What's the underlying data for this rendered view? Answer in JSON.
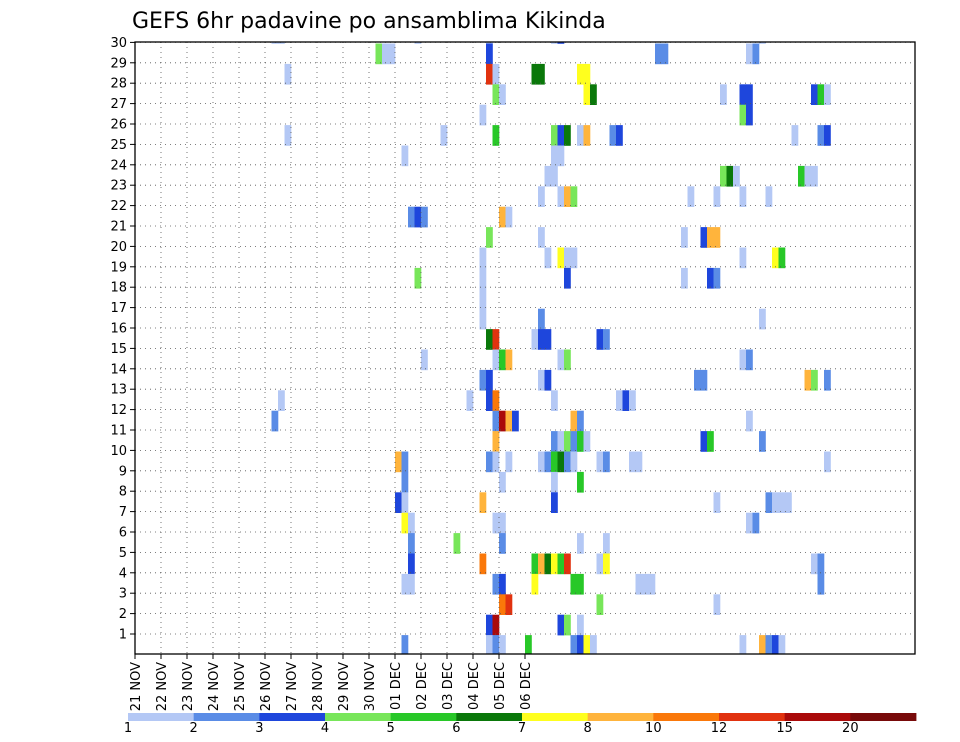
{
  "chart_data": {
    "type": "heatmap",
    "title": "GEFS 6hr padavine po ansamblima Kikinda",
    "xlabel": "",
    "ylabel": "",
    "x_ticks": [
      "21 NOV",
      "22 NOV",
      "23 NOV",
      "24 NOV",
      "25 NOV",
      "26 NOV",
      "27 NOV",
      "28 NOV",
      "29 NOV",
      "30 NOV",
      "01 DEC",
      "02 DEC",
      "03 DEC",
      "04 DEC",
      "05 DEC",
      "06 DEC"
    ],
    "y_ticks": [
      "1",
      "2",
      "3",
      "4",
      "5",
      "6",
      "7",
      "8",
      "9",
      "10",
      "11",
      "12",
      "13",
      "14",
      "15",
      "16",
      "17",
      "18",
      "19",
      "20",
      "21",
      "22",
      "23",
      "24",
      "25",
      "26",
      "27",
      "28",
      "29",
      "30"
    ],
    "x_unit": "6h steps from 21 NOV 00 UTC (4 steps per day)",
    "grid": true,
    "colorbar": {
      "labels": [
        "1",
        "2",
        "3",
        "4",
        "5",
        "6",
        "7",
        "8",
        "10",
        "12",
        "15",
        "20"
      ],
      "colors": [
        "#b4c8f5",
        "#5a8ce6",
        "#1e46dc",
        "#78e65a",
        "#28c828",
        "#0a780a",
        "#ffff1e",
        "#ffb43c",
        "#fa780a",
        "#e1320f",
        "#aa0a0a",
        "#780a0a"
      ]
    },
    "cells": [
      [
        30,
        21,
        0
      ],
      [
        30,
        22,
        0
      ],
      [
        30,
        43,
        0
      ],
      [
        30,
        54,
        0
      ],
      [
        30,
        64,
        0
      ],
      [
        30,
        65,
        2
      ],
      [
        30,
        96,
        0
      ],
      [
        29,
        37,
        3
      ],
      [
        29,
        38,
        0
      ],
      [
        29,
        39,
        0
      ],
      [
        29,
        54,
        2
      ],
      [
        29,
        80,
        1
      ],
      [
        29,
        81,
        1
      ],
      [
        29,
        94,
        0
      ],
      [
        29,
        95,
        1
      ],
      [
        28,
        23,
        0
      ],
      [
        28,
        54,
        9
      ],
      [
        28,
        55,
        0
      ],
      [
        28,
        61,
        5
      ],
      [
        28,
        62,
        5
      ],
      [
        28,
        68,
        6
      ],
      [
        28,
        69,
        6
      ],
      [
        27,
        55,
        3
      ],
      [
        27,
        56,
        0
      ],
      [
        27,
        69,
        6
      ],
      [
        27,
        70,
        5
      ],
      [
        27,
        90,
        0
      ],
      [
        27,
        93,
        2
      ],
      [
        27,
        94,
        2
      ],
      [
        27,
        104,
        2
      ],
      [
        27,
        105,
        4
      ],
      [
        27,
        106,
        0
      ],
      [
        26,
        53,
        0
      ],
      [
        26,
        93,
        3
      ],
      [
        26,
        94,
        2
      ],
      [
        25,
        23,
        0
      ],
      [
        25,
        47,
        0
      ],
      [
        25,
        55,
        4
      ],
      [
        25,
        64,
        3
      ],
      [
        25,
        65,
        2
      ],
      [
        25,
        66,
        5
      ],
      [
        25,
        68,
        0
      ],
      [
        25,
        69,
        7
      ],
      [
        25,
        73,
        1
      ],
      [
        25,
        74,
        2
      ],
      [
        25,
        101,
        0
      ],
      [
        25,
        105,
        1
      ],
      [
        25,
        106,
        2
      ],
      [
        24,
        41,
        0
      ],
      [
        24,
        64,
        0
      ],
      [
        24,
        65,
        0
      ],
      [
        23,
        63,
        0
      ],
      [
        23,
        64,
        0
      ],
      [
        23,
        90,
        3
      ],
      [
        23,
        91,
        5
      ],
      [
        23,
        92,
        0
      ],
      [
        23,
        102,
        4
      ],
      [
        23,
        103,
        0
      ],
      [
        23,
        104,
        0
      ],
      [
        22,
        62,
        0
      ],
      [
        22,
        65,
        0
      ],
      [
        22,
        66,
        7
      ],
      [
        22,
        67,
        3
      ],
      [
        22,
        85,
        0
      ],
      [
        22,
        89,
        0
      ],
      [
        22,
        93,
        0
      ],
      [
        22,
        97,
        0
      ],
      [
        21,
        42,
        1
      ],
      [
        21,
        43,
        2
      ],
      [
        21,
        44,
        1
      ],
      [
        21,
        56,
        7
      ],
      [
        21,
        57,
        0
      ],
      [
        20,
        54,
        3
      ],
      [
        20,
        62,
        0
      ],
      [
        20,
        84,
        0
      ],
      [
        20,
        87,
        2
      ],
      [
        20,
        88,
        7
      ],
      [
        20,
        89,
        7
      ],
      [
        19,
        53,
        0
      ],
      [
        19,
        63,
        0
      ],
      [
        19,
        65,
        6
      ],
      [
        19,
        66,
        0
      ],
      [
        19,
        67,
        0
      ],
      [
        19,
        93,
        0
      ],
      [
        19,
        98,
        6
      ],
      [
        19,
        99,
        4
      ],
      [
        18,
        53,
        0
      ],
      [
        18,
        43,
        3
      ],
      [
        18,
        66,
        2
      ],
      [
        18,
        84,
        0
      ],
      [
        18,
        88,
        2
      ],
      [
        18,
        89,
        1
      ],
      [
        17,
        53,
        0
      ],
      [
        16,
        53,
        0
      ],
      [
        16,
        62,
        1
      ],
      [
        16,
        96,
        0
      ],
      [
        15,
        54,
        5
      ],
      [
        15,
        55,
        9
      ],
      [
        15,
        61,
        0
      ],
      [
        15,
        62,
        2
      ],
      [
        15,
        63,
        2
      ],
      [
        15,
        71,
        2
      ],
      [
        15,
        72,
        1
      ],
      [
        14,
        44,
        0
      ],
      [
        14,
        55,
        0
      ],
      [
        14,
        56,
        4
      ],
      [
        14,
        57,
        7
      ],
      [
        14,
        65,
        0
      ],
      [
        14,
        66,
        3
      ],
      [
        14,
        93,
        0
      ],
      [
        14,
        94,
        1
      ],
      [
        13,
        53,
        1
      ],
      [
        13,
        54,
        2
      ],
      [
        13,
        62,
        0
      ],
      [
        13,
        63,
        2
      ],
      [
        13,
        86,
        1
      ],
      [
        13,
        87,
        1
      ],
      [
        13,
        103,
        7
      ],
      [
        13,
        104,
        3
      ],
      [
        13,
        106,
        1
      ],
      [
        12,
        22,
        0
      ],
      [
        12,
        51,
        0
      ],
      [
        12,
        54,
        2
      ],
      [
        12,
        55,
        8
      ],
      [
        12,
        64,
        0
      ],
      [
        12,
        74,
        0
      ],
      [
        12,
        75,
        2
      ],
      [
        12,
        76,
        0
      ],
      [
        11,
        21,
        1
      ],
      [
        11,
        55,
        1
      ],
      [
        11,
        56,
        10
      ],
      [
        11,
        57,
        7
      ],
      [
        11,
        58,
        2
      ],
      [
        11,
        67,
        7
      ],
      [
        11,
        68,
        1
      ],
      [
        11,
        94,
        0
      ],
      [
        10,
        55,
        7
      ],
      [
        10,
        64,
        1
      ],
      [
        10,
        65,
        0
      ],
      [
        10,
        66,
        3
      ],
      [
        10,
        67,
        1
      ],
      [
        10,
        68,
        4
      ],
      [
        10,
        69,
        0
      ],
      [
        10,
        87,
        2
      ],
      [
        10,
        88,
        4
      ],
      [
        10,
        96,
        1
      ],
      [
        9,
        40,
        7
      ],
      [
        9,
        41,
        1
      ],
      [
        9,
        54,
        1
      ],
      [
        9,
        55,
        0
      ],
      [
        9,
        57,
        0
      ],
      [
        9,
        62,
        0
      ],
      [
        9,
        63,
        1
      ],
      [
        9,
        64,
        4
      ],
      [
        9,
        65,
        5
      ],
      [
        9,
        66,
        1
      ],
      [
        9,
        67,
        0
      ],
      [
        9,
        71,
        0
      ],
      [
        9,
        72,
        1
      ],
      [
        9,
        76,
        0
      ],
      [
        9,
        77,
        0
      ],
      [
        9,
        106,
        0
      ],
      [
        8,
        41,
        1
      ],
      [
        8,
        56,
        0
      ],
      [
        8,
        64,
        0
      ],
      [
        8,
        68,
        4
      ],
      [
        7,
        40,
        2
      ],
      [
        7,
        41,
        0
      ],
      [
        7,
        53,
        7
      ],
      [
        7,
        64,
        2
      ],
      [
        7,
        89,
        0
      ],
      [
        7,
        97,
        1
      ],
      [
        7,
        98,
        0
      ],
      [
        7,
        99,
        0
      ],
      [
        7,
        100,
        0
      ],
      [
        6,
        41,
        6
      ],
      [
        6,
        42,
        0
      ],
      [
        6,
        55,
        0
      ],
      [
        6,
        56,
        0
      ],
      [
        6,
        94,
        0
      ],
      [
        6,
        95,
        1
      ],
      [
        5,
        42,
        1
      ],
      [
        5,
        49,
        3
      ],
      [
        5,
        56,
        1
      ],
      [
        5,
        68,
        0
      ],
      [
        5,
        72,
        0
      ],
      [
        4,
        42,
        2
      ],
      [
        4,
        53,
        8
      ],
      [
        4,
        61,
        4
      ],
      [
        4,
        62,
        7
      ],
      [
        4,
        63,
        5
      ],
      [
        4,
        64,
        6
      ],
      [
        4,
        65,
        4
      ],
      [
        4,
        66,
        9
      ],
      [
        4,
        71,
        0
      ],
      [
        4,
        72,
        6
      ],
      [
        4,
        104,
        0
      ],
      [
        4,
        105,
        1
      ],
      [
        3,
        41,
        0
      ],
      [
        3,
        42,
        0
      ],
      [
        3,
        55,
        1
      ],
      [
        3,
        56,
        2
      ],
      [
        3,
        61,
        6
      ],
      [
        3,
        67,
        4
      ],
      [
        3,
        68,
        4
      ],
      [
        3,
        77,
        0
      ],
      [
        3,
        78,
        0
      ],
      [
        3,
        79,
        0
      ],
      [
        3,
        105,
        1
      ],
      [
        2,
        56,
        8
      ],
      [
        2,
        57,
        9
      ],
      [
        2,
        71,
        3
      ],
      [
        2,
        89,
        0
      ],
      [
        1,
        54,
        2
      ],
      [
        1,
        55,
        10
      ],
      [
        1,
        65,
        2
      ],
      [
        1,
        66,
        3
      ],
      [
        1,
        68,
        0
      ],
      [
        0,
        41,
        1
      ],
      [
        0,
        54,
        0
      ],
      [
        0,
        55,
        1
      ],
      [
        0,
        56,
        0
      ],
      [
        0,
        60,
        4
      ],
      [
        0,
        67,
        1
      ],
      [
        0,
        68,
        2
      ],
      [
        0,
        69,
        6
      ],
      [
        0,
        70,
        0
      ],
      [
        0,
        93,
        0
      ],
      [
        0,
        96,
        7
      ],
      [
        0,
        97,
        1
      ],
      [
        0,
        98,
        2
      ],
      [
        0,
        99,
        0
      ]
    ]
  }
}
